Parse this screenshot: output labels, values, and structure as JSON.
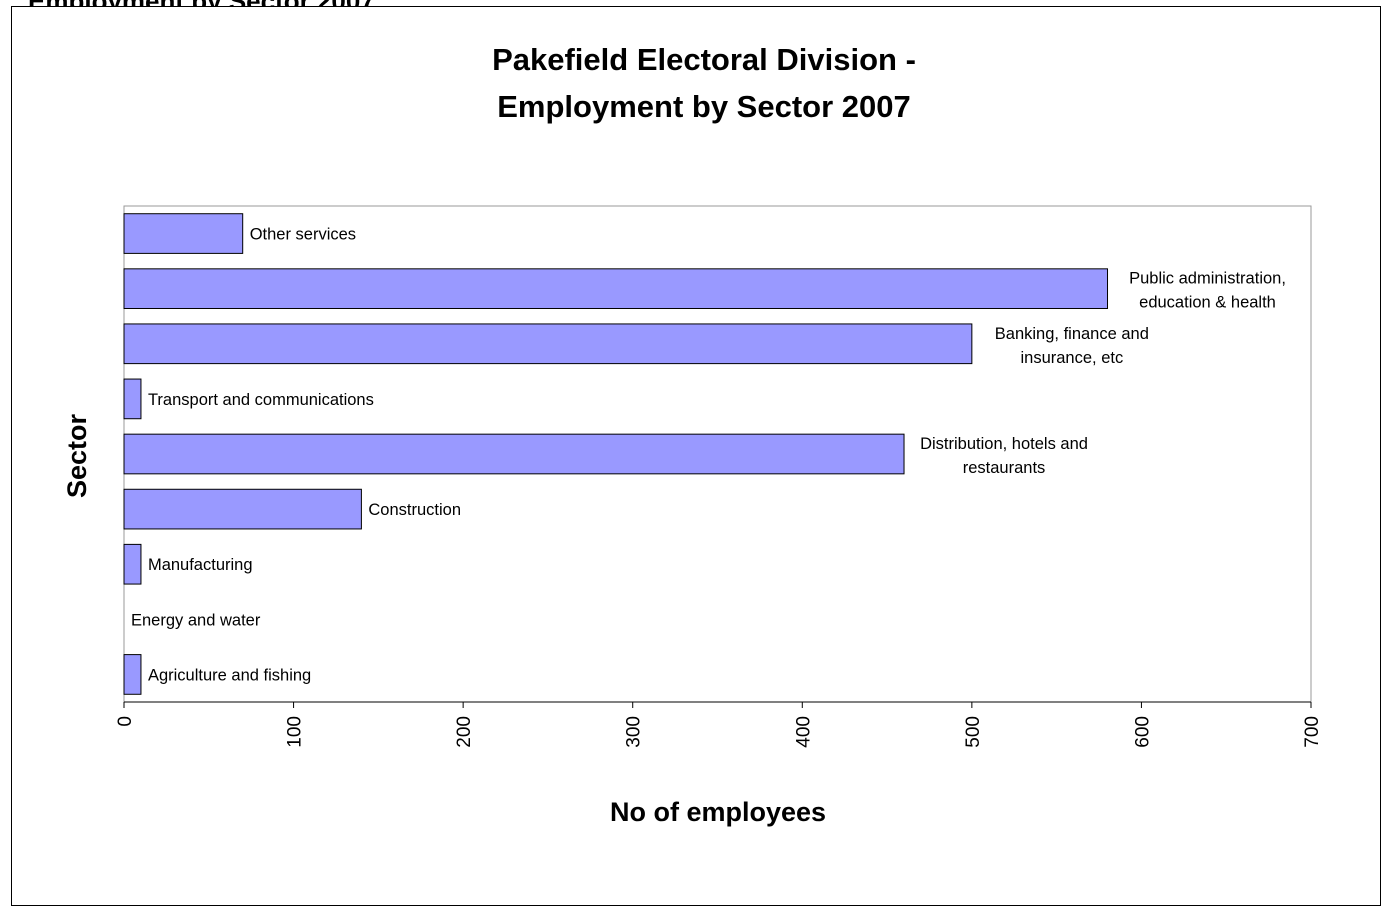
{
  "page_title_partial": "Employment by Sector 2007",
  "chart_data": {
    "type": "bar",
    "orientation": "horizontal",
    "title": [
      "Pakefield Electoral Division -",
      "Employment by Sector 2007"
    ],
    "xlabel": "No of employees",
    "ylabel": "Sector",
    "xlim": [
      0,
      700
    ],
    "xticks": [
      "0",
      "100",
      "200",
      "300",
      "400",
      "500",
      "600",
      "700"
    ],
    "grid": false,
    "legend": "none",
    "bar_color": "#9999ff",
    "categories": [
      "Other services",
      "Public administration, education & health",
      "Banking, finance and insurance, etc",
      "Transport and communications",
      "Distribution, hotels and restaurants",
      "Construction",
      "Manufacturing",
      "Energy and water",
      "Agriculture and fishing"
    ],
    "category_labels": [
      [
        "Other services"
      ],
      [
        "Public administration,",
        "education & health"
      ],
      [
        "Banking, finance and",
        "insurance, etc"
      ],
      [
        "Transport and communications"
      ],
      [
        "Distribution, hotels and",
        "restaurants"
      ],
      [
        "Construction"
      ],
      [
        "Manufacturing"
      ],
      [
        "Energy and water"
      ],
      [
        "Agriculture and fishing"
      ]
    ],
    "values": [
      70,
      580,
      500,
      10,
      460,
      140,
      10,
      0,
      10
    ]
  }
}
